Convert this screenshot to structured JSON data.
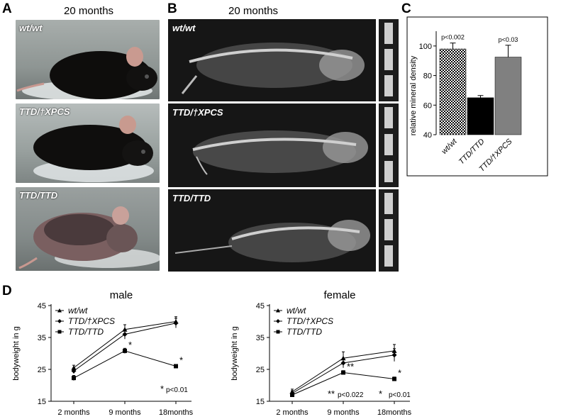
{
  "panels": {
    "a": "A",
    "b": "B",
    "c": "C",
    "d": "D"
  },
  "headers": {
    "a": "20 months",
    "b": "20 months"
  },
  "photo_labels": [
    "wt/wt",
    "TTD/†XPCS",
    "TTD/TTD"
  ],
  "xray_labels": [
    "wt/wt",
    "TTD/†XPCS",
    "TTD/TTD"
  ],
  "chart_c": {
    "type": "bar",
    "ylabel": "relative mineral density",
    "categories": [
      "wt/wt",
      "TTD/TTD",
      "TTD/†XPCS"
    ],
    "values": [
      98,
      65,
      92.5
    ],
    "errors": [
      4,
      1.5,
      8
    ],
    "ylim": [
      40,
      110
    ],
    "yticks": [
      "40",
      "60",
      "80",
      "100"
    ],
    "annotations": [
      {
        "bar": 0,
        "text": "p<0.002"
      },
      {
        "bar": 2,
        "text": "p<0.03"
      }
    ],
    "colors": [
      "#ffffff",
      "#000000",
      "#808080"
    ]
  },
  "chart_data": [
    {
      "type": "line",
      "title": "male",
      "ylabel": "bodyweight in g",
      "categories": [
        "2 months",
        "9 months",
        "18months"
      ],
      "ylim": [
        15,
        45
      ],
      "yticks": [
        "15",
        "25",
        "35",
        "45"
      ],
      "series": [
        {
          "name": "wt/wt",
          "values": [
            25.5,
            37.5,
            40
          ],
          "errors": [
            0.8,
            1.5,
            1.5
          ]
        },
        {
          "name": "TTD/†XPCS",
          "values": [
            24.5,
            36,
            39.5
          ],
          "errors": [
            0.8,
            1.5,
            1.5
          ]
        },
        {
          "name": "TTD/TTD",
          "values": [
            22.3,
            30.8,
            26
          ],
          "errors": [
            0.8,
            0.8,
            0.4
          ]
        }
      ],
      "stars": [
        {
          "x": 1,
          "text": "*"
        },
        {
          "x": 2,
          "text": "*"
        }
      ],
      "footnote_star": "*",
      "footnote": "p<0.01"
    },
    {
      "type": "line",
      "title": "female",
      "ylabel": "bodyweight in g",
      "categories": [
        "2 months",
        "9 months",
        "18months"
      ],
      "ylim": [
        15,
        45
      ],
      "yticks": [
        "15",
        "25",
        "35",
        "45"
      ],
      "series": [
        {
          "name": "wt/wt",
          "values": [
            18,
            28.5,
            30.8
          ],
          "errors": [
            0.8,
            2,
            2
          ]
        },
        {
          "name": "TTD/†XPCS",
          "values": [
            17.5,
            27,
            29.5
          ],
          "errors": [
            0.8,
            1.5,
            2
          ]
        },
        {
          "name": "TTD/TTD",
          "values": [
            17,
            24,
            22
          ],
          "errors": [
            0.6,
            0.6,
            0.6
          ]
        }
      ],
      "stars": [
        {
          "x": 1,
          "text": "**"
        },
        {
          "x": 2,
          "text": "*"
        }
      ],
      "footnotes": [
        {
          "x": 1,
          "star": "**",
          "text": "p<0.022"
        },
        {
          "x": 2,
          "star": "*",
          "text": "p<0.01"
        }
      ]
    }
  ]
}
